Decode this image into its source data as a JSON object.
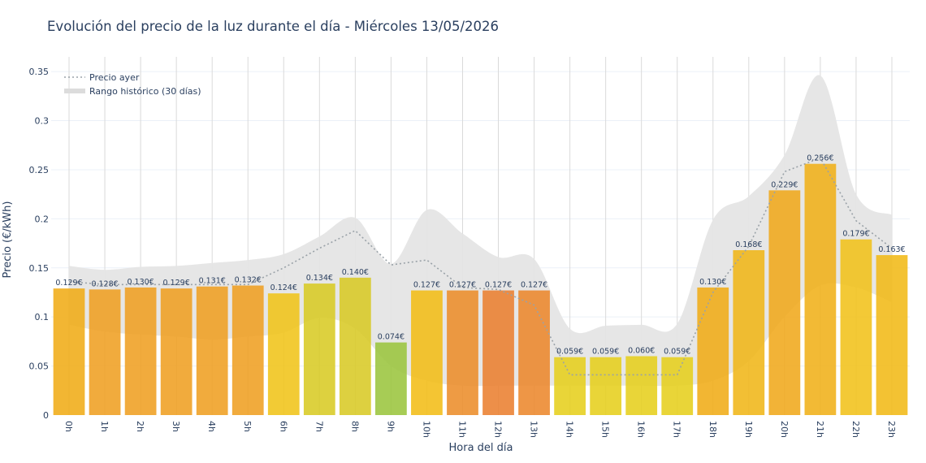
{
  "chart_data": {
    "type": "bar",
    "title": "Evolución del precio de la luz durante el día - Miércoles 13/05/2026",
    "xlabel": "Hora del día",
    "ylabel": "Precio (€/kWh)",
    "ylim": [
      0,
      0.365
    ],
    "yticks": [
      0,
      0.05,
      0.1,
      0.15,
      0.2,
      0.25,
      0.3,
      0.35
    ],
    "ytick_labels": [
      "0",
      "0.05",
      "0.1",
      "0.15",
      "0.2",
      "0.25",
      "0.3",
      "0.35"
    ],
    "grid": true,
    "legend_position": "top-left",
    "categories": [
      "0h",
      "1h",
      "2h",
      "3h",
      "4h",
      "5h",
      "6h",
      "7h",
      "8h",
      "9h",
      "10h",
      "11h",
      "12h",
      "13h",
      "14h",
      "15h",
      "16h",
      "17h",
      "18h",
      "19h",
      "20h",
      "21h",
      "22h",
      "23h"
    ],
    "values": [
      0.129,
      0.128,
      0.13,
      0.129,
      0.131,
      0.132,
      0.124,
      0.134,
      0.14,
      0.074,
      0.127,
      0.127,
      0.127,
      0.127,
      0.059,
      0.059,
      0.06,
      0.059,
      0.13,
      0.168,
      0.229,
      0.256,
      0.179,
      0.163
    ],
    "value_labels": [
      "0.129€",
      "0.128€",
      "0.130€",
      "0.129€",
      "0.131€",
      "0.132€",
      "0.124€",
      "0.134€",
      "0.140€",
      "0.074€",
      "0.127€",
      "0.127€",
      "0.127€",
      "0.127€",
      "0.059€",
      "0.059€",
      "0.060€",
      "0.059€",
      "0.130€",
      "0.168€",
      "0.229€",
      "0.256€",
      "0.179€",
      "0.163€"
    ],
    "bar_colors": [
      "#f0ac17",
      "#ef9f22",
      "#ef9f22",
      "#ef9f22",
      "#ef9f22",
      "#ef9f22",
      "#f0c419",
      "#d8cb24",
      "#d8c926",
      "#9bc53d",
      "#f2bd17",
      "#ec8d2a",
      "#ea7f30",
      "#ec882c",
      "#e6cf1c",
      "#e6cf1c",
      "#e6cf1c",
      "#e6cf1c",
      "#f0ac17",
      "#f0b618",
      "#f0a81b",
      "#f0b019",
      "#f1c21a",
      "#f1b917"
    ],
    "series": [
      {
        "name": "Precio ayer",
        "type": "line",
        "style": "dotted",
        "color": "#9aa2a8",
        "values": [
          0.136,
          0.133,
          0.133,
          0.133,
          0.133,
          0.133,
          0.15,
          0.17,
          0.188,
          0.153,
          0.158,
          0.13,
          0.128,
          0.112,
          0.041,
          0.041,
          0.041,
          0.041,
          0.125,
          0.172,
          0.248,
          0.262,
          0.198,
          0.17
        ]
      },
      {
        "name": "Rango histórico (30 días)",
        "type": "band",
        "color": "#e5e5e5",
        "lower": [
          0.092,
          0.085,
          0.082,
          0.08,
          0.077,
          0.08,
          0.084,
          0.099,
          0.088,
          0.05,
          0.035,
          0.03,
          0.03,
          0.03,
          0.03,
          0.03,
          0.03,
          0.03,
          0.035,
          0.055,
          0.1,
          0.132,
          0.13,
          0.115
        ],
        "upper": [
          0.152,
          0.148,
          0.151,
          0.152,
          0.155,
          0.158,
          0.164,
          0.182,
          0.201,
          0.154,
          0.209,
          0.185,
          0.161,
          0.159,
          0.088,
          0.091,
          0.092,
          0.093,
          0.199,
          0.223,
          0.265,
          0.346,
          0.225,
          0.204
        ]
      }
    ]
  }
}
